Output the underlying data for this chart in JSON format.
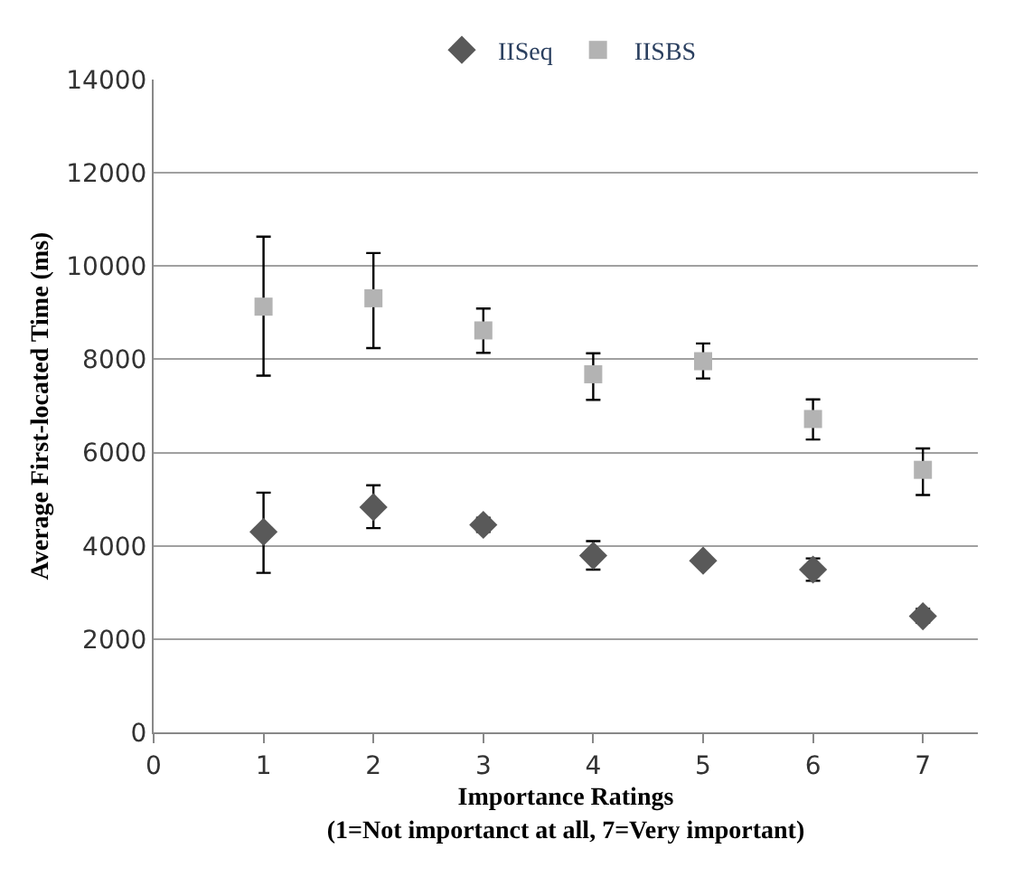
{
  "chart_data": {
    "type": "scatter",
    "xlabel": "Importance Ratings\n(1=Not importanct at all, 7=Very important)",
    "ylabel": "Average First-located Time (ms)",
    "x": [
      1,
      2,
      3,
      4,
      5,
      6,
      7
    ],
    "series": [
      {
        "name": "IISeq",
        "color": "#595959",
        "marker": "diamond",
        "values": [
          4300,
          4830,
          4450,
          3790,
          3680,
          3490,
          2490
        ],
        "errors": [
          [
            3420,
            5140
          ],
          [
            4380,
            5300
          ],
          [
            4300,
            4600
          ],
          [
            3490,
            4100
          ],
          null,
          [
            3250,
            3730
          ],
          [
            2350,
            2650
          ]
        ]
      },
      {
        "name": "IISBS",
        "color": "#b3b3b3",
        "marker": "square",
        "values": [
          9130,
          9310,
          8620,
          7680,
          7960,
          6720,
          5630
        ],
        "errors": [
          [
            7650,
            10630
          ],
          [
            8240,
            10280
          ],
          [
            8140,
            9090
          ],
          [
            7130,
            8130
          ],
          [
            7590,
            8340
          ],
          [
            6280,
            7140
          ],
          [
            5090,
            6090
          ]
        ]
      }
    ],
    "xlim": [
      0,
      7.5
    ],
    "xticks": [
      0,
      1,
      2,
      3,
      4,
      5,
      6,
      7
    ],
    "ylim": [
      0,
      14000
    ],
    "yticks": [
      0,
      2000,
      4000,
      6000,
      8000,
      10000,
      12000,
      14000
    ],
    "grid": "y",
    "legend": "top"
  }
}
